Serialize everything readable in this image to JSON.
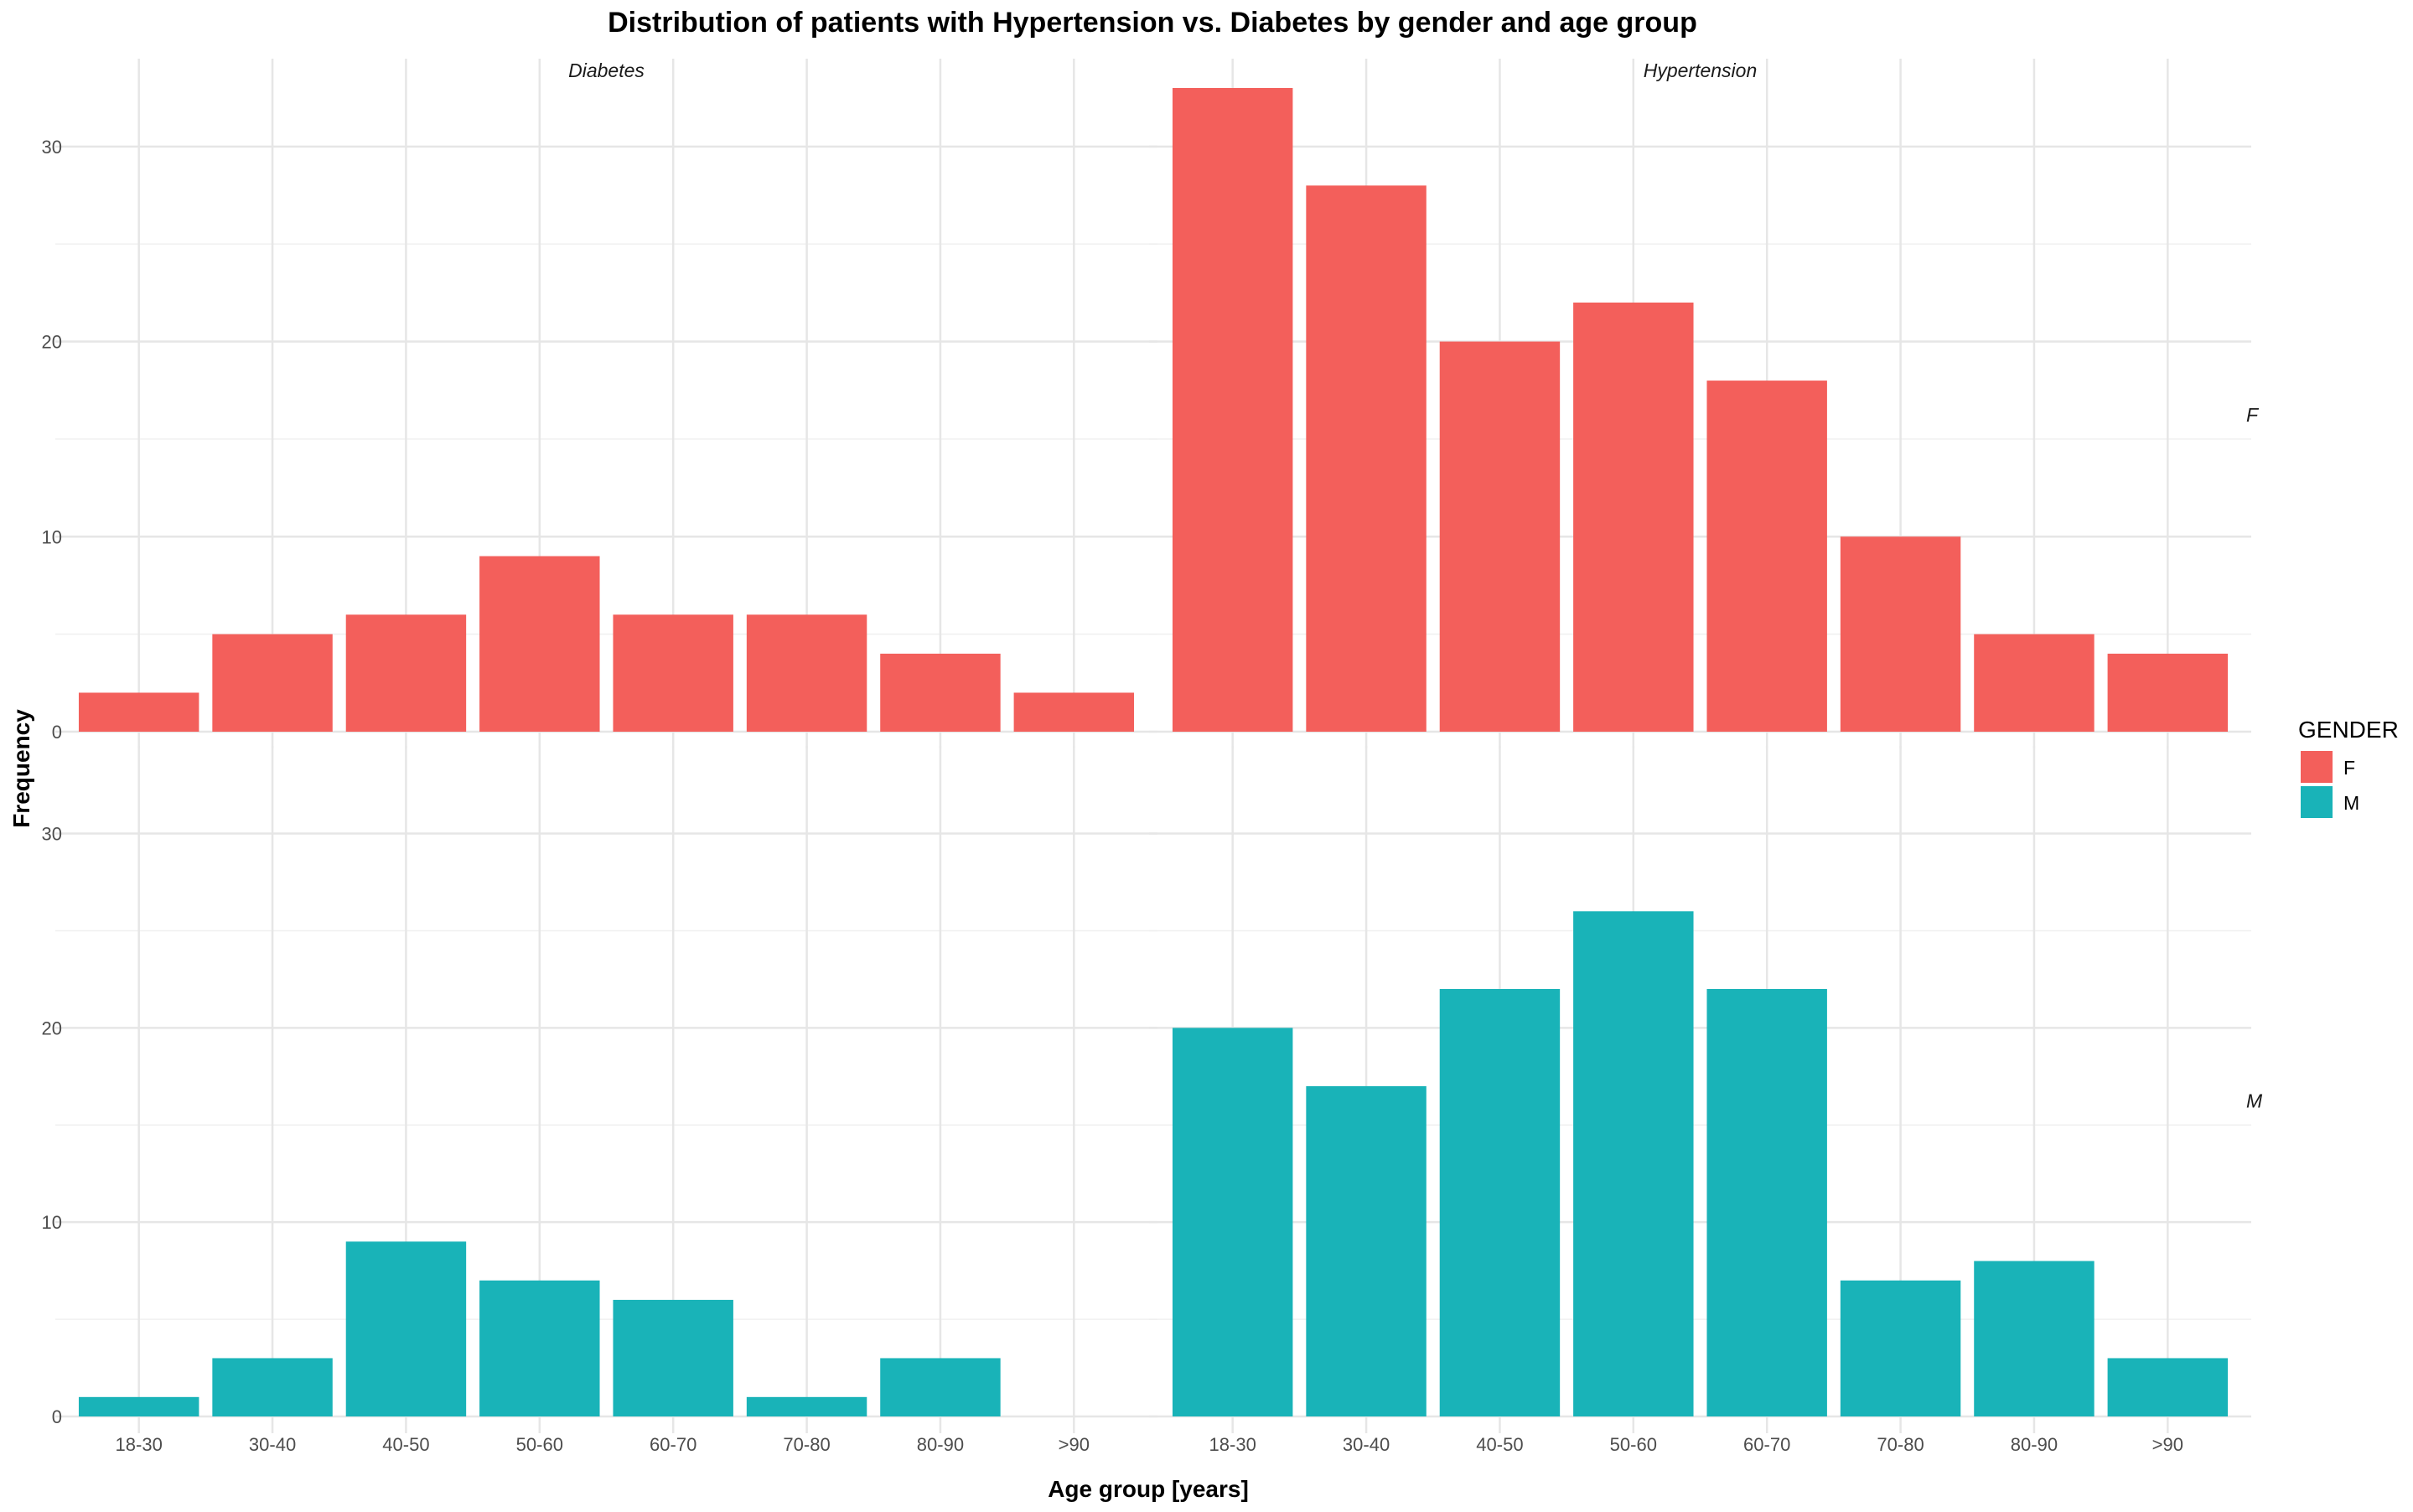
{
  "chart_data": {
    "type": "bar",
    "title": "Distribution of patients with Hypertension vs. Diabetes by gender and age group",
    "xlabel": "Age group [years]",
    "ylabel": "Frequency",
    "categories": [
      "18-30",
      "30-40",
      "40-50",
      "50-60",
      "60-70",
      "70-80",
      "80-90",
      ">90"
    ],
    "ylim": [
      0,
      33
    ],
    "yticks": [
      0,
      10,
      20,
      30
    ],
    "grid": true,
    "column_facets": [
      "Diabetes",
      "Hypertension"
    ],
    "row_facets": [
      "F",
      "M"
    ],
    "legend": {
      "title": "GENDER",
      "position": "right",
      "entries": [
        {
          "label": "F",
          "color": "#F35F5B"
        },
        {
          "label": "M",
          "color": "#19B3B8"
        }
      ]
    },
    "panels": [
      {
        "facet_col": "Diabetes",
        "facet_row": "F",
        "values": [
          2,
          5,
          6,
          9,
          6,
          6,
          4,
          2
        ]
      },
      {
        "facet_col": "Hypertension",
        "facet_row": "F",
        "values": [
          33,
          28,
          20,
          22,
          18,
          10,
          5,
          4
        ]
      },
      {
        "facet_col": "Diabetes",
        "facet_row": "M",
        "values": [
          1,
          3,
          9,
          7,
          6,
          1,
          3,
          0
        ]
      },
      {
        "facet_col": "Hypertension",
        "facet_row": "M",
        "values": [
          20,
          17,
          22,
          26,
          22,
          7,
          8,
          3
        ]
      }
    ]
  }
}
